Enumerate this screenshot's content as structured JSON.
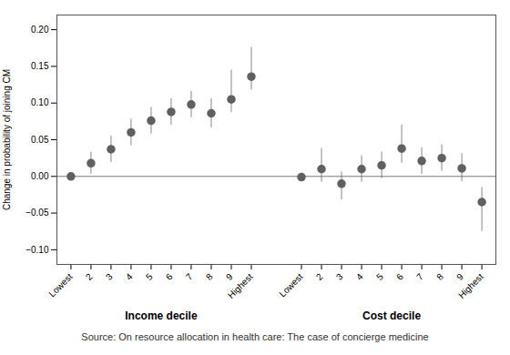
{
  "chart_data": {
    "type": "errorbar",
    "categories": [
      "Lowest",
      "2",
      "3",
      "4",
      "5",
      "6",
      "7",
      "8",
      "9",
      "Highest"
    ],
    "series": [
      {
        "name": "Income decile",
        "values": [
          0.0,
          0.018,
          0.037,
          0.06,
          0.076,
          0.088,
          0.098,
          0.086,
          0.105,
          0.136
        ],
        "yerr_lo": [
          0.0,
          0.015,
          0.018,
          0.018,
          0.018,
          0.018,
          0.018,
          0.02,
          0.018,
          0.018
        ],
        "yerr_hi": [
          0.0,
          0.015,
          0.018,
          0.018,
          0.018,
          0.018,
          0.018,
          0.02,
          0.04,
          0.04
        ]
      },
      {
        "name": "Cost decile",
        "values": [
          -0.001,
          0.01,
          -0.01,
          0.01,
          0.015,
          0.038,
          0.021,
          0.025,
          0.011,
          -0.035
        ],
        "yerr_lo": [
          0.005,
          0.018,
          0.022,
          0.018,
          0.018,
          0.02,
          0.018,
          0.018,
          0.018,
          0.04
        ],
        "yerr_hi": [
          0.005,
          0.028,
          0.016,
          0.018,
          0.018,
          0.032,
          0.018,
          0.018,
          0.02,
          0.02
        ]
      }
    ],
    "ylabel": "Change in probability of joining CM",
    "caption": "Source:  On resource allocation in health care: The case of concierge medicine",
    "ylim": [
      -0.12,
      0.22
    ],
    "yticks": [
      {
        "value": -0.1,
        "label": "−0.10"
      },
      {
        "value": -0.05,
        "label": "−0.05"
      },
      {
        "value": 0,
        "label": "0.00"
      },
      {
        "value": 0.05,
        "label": "0.05"
      },
      {
        "value": 0.1,
        "label": "0.10"
      },
      {
        "value": 0.15,
        "label": "0.15"
      },
      {
        "value": 0.2,
        "label": "0.20"
      }
    ],
    "color": "#606060",
    "marker": "circle",
    "grid": false
  }
}
